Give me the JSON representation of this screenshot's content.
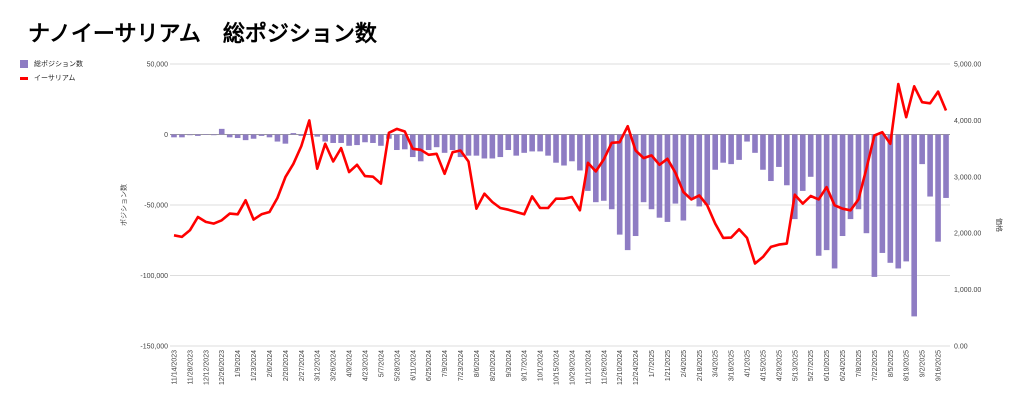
{
  "chart_data": {
    "type": "bar+line",
    "title": "ナノイーサリアム　総ポジション数",
    "legend": [
      {
        "name": "総ポジション数",
        "color": "#8e7cc3",
        "kind": "bar"
      },
      {
        "name": "イーサリアム",
        "color": "#ff0000",
        "kind": "line"
      }
    ],
    "legend_position": "top-left",
    "ylabel_left": "ポジション数",
    "ylabel_right": "価格",
    "ylim_left": [
      -150000,
      50000
    ],
    "ylim_right": [
      0,
      5000
    ],
    "yticks_left": [
      "50,000",
      "0",
      "-50,000",
      "-100,000",
      "-150,000"
    ],
    "yticks_right": [
      "5,000.00",
      "4,000.00",
      "3,000.00",
      "2,000.00",
      "1,000.00",
      "0.00"
    ],
    "tick_every": 2,
    "x_tick_labels": [
      "11/14/2023",
      "11/28/2023",
      "12/12/2023",
      "12/26/2023",
      "1/9/2024",
      "1/23/2024",
      "2/6/2024",
      "2/20/2024",
      "2/27/2024",
      "3/12/2024",
      "3/26/2024",
      "4/9/2024",
      "4/23/2024",
      "5/7/2024",
      "5/28/2024",
      "6/11/2024",
      "6/25/2024",
      "7/9/2024",
      "7/23/2024",
      "8/6/2024",
      "8/20/2024",
      "9/3/2024",
      "9/17/2024",
      "10/1/2024",
      "10/15/2024",
      "10/29/2024",
      "11/12/2024",
      "11/26/2024",
      "12/10/2024",
      "12/24/2024",
      "1/7/2025",
      "1/21/2025",
      "2/4/2025",
      "2/18/2025",
      "3/4/2025",
      "3/18/2025",
      "4/1/2025",
      "4/15/2025",
      "4/29/2025",
      "5/13/2025",
      "5/27/2025",
      "6/10/2025",
      "6/24/2025",
      "7/8/2025",
      "7/22/2025",
      "8/5/2025",
      "8/19/2025",
      "9/2/2025",
      "9/16/2025"
    ],
    "series": [
      {
        "name": "総ポジション数",
        "axis": "left",
        "values": [
          -2000,
          -2000,
          -500,
          -1000,
          0,
          -500,
          4000,
          -2000,
          -2500,
          -4000,
          -3000,
          -1000,
          -2000,
          -5000,
          -6500,
          1000,
          -1000,
          0,
          -1500,
          -5000,
          -6000,
          -6000,
          -8000,
          -7500,
          -5500,
          -6000,
          -8000,
          -3000,
          -11000,
          -10500,
          -16000,
          -19000,
          -11000,
          -9000,
          -13000,
          -11000,
          -16000,
          -15000,
          -15000,
          -17000,
          -17000,
          -16000,
          -11000,
          -15000,
          -13000,
          -12000,
          -12000,
          -15000,
          -20000,
          -22000,
          -19000,
          -25500,
          -40000,
          -48000,
          -47000,
          -53000,
          -71000,
          -82000,
          -72000,
          -48000,
          -53000,
          -59000,
          -62000,
          -49000,
          -61000,
          -45000,
          -51000,
          -50000,
          -25000,
          -20000,
          -21000,
          -18000,
          -5000,
          -13000,
          -25000,
          -33000,
          -23000,
          -36000,
          -60000,
          -40000,
          -30000,
          -86000,
          -82000,
          -95000,
          -72000,
          -60000,
          -53000,
          -70000,
          -101000,
          -84000,
          -91000,
          -95000,
          -90000,
          -129000,
          -21000,
          -44000,
          -76000,
          -45000
        ]
      },
      {
        "name": "イーサリアム",
        "axis": "right",
        "values": [
          1963,
          1934,
          2052,
          2288,
          2200,
          2170,
          2229,
          2347,
          2335,
          2583,
          2241,
          2335,
          2376,
          2624,
          2995,
          3231,
          3544,
          4000,
          3143,
          3585,
          3272,
          3508,
          3084,
          3213,
          3013,
          3001,
          2877,
          3780,
          3850,
          3803,
          3497,
          3479,
          3390,
          3408,
          3054,
          3437,
          3467,
          3272,
          2435,
          2700,
          2553,
          2447,
          2417,
          2376,
          2335,
          2653,
          2447,
          2447,
          2612,
          2612,
          2641,
          2406,
          3249,
          3096,
          3308,
          3603,
          3614,
          3897,
          3467,
          3331,
          3379,
          3213,
          3320,
          3072,
          2730,
          2600,
          2671,
          2494,
          2170,
          1916,
          1922,
          2070,
          1916,
          1462,
          1580,
          1757,
          1798,
          1816,
          2683,
          2524,
          2659,
          2600,
          2818,
          2494,
          2435,
          2406,
          2600,
          3143,
          3732,
          3791,
          3585,
          4646,
          4057,
          4605,
          4322,
          4304,
          4511,
          4175
        ]
      }
    ]
  }
}
